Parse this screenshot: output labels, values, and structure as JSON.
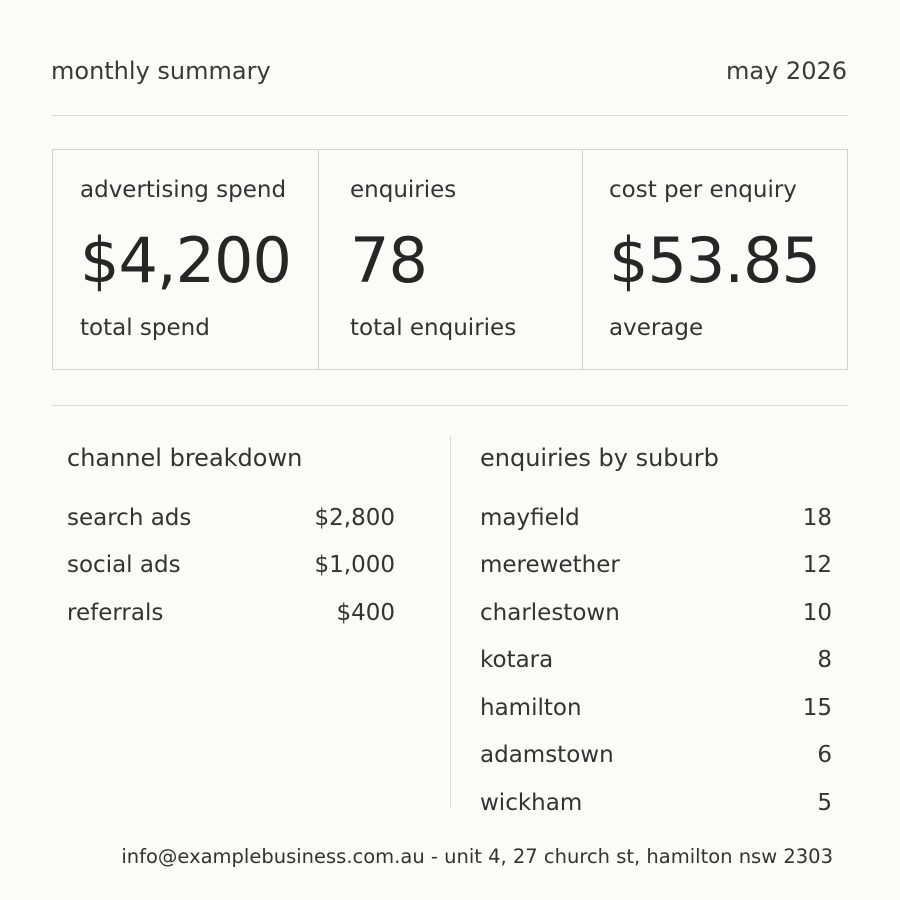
{
  "header": {
    "title": "monthly summary",
    "period": "may 2026"
  },
  "cards": [
    {
      "label": "advertising spend",
      "value": "$4,200",
      "sub": "total spend"
    },
    {
      "label": "enquiries",
      "value": "78",
      "sub": "total enquiries"
    },
    {
      "label": "cost per enquiry",
      "value": "$53.85",
      "sub": "average"
    }
  ],
  "channels": {
    "title": "channel breakdown",
    "rows": [
      {
        "name": "search ads",
        "value": "$2,800"
      },
      {
        "name": "social ads",
        "value": "$1,000"
      },
      {
        "name": "referrals",
        "value": "$400"
      }
    ]
  },
  "suburbs": {
    "title": "enquiries by suburb",
    "rows": [
      {
        "name": "mayfield",
        "value": "18"
      },
      {
        "name": "merewether",
        "value": "12"
      },
      {
        "name": "charlestown",
        "value": "10"
      },
      {
        "name": "kotara",
        "value": "8"
      },
      {
        "name": "hamilton",
        "value": "15"
      },
      {
        "name": "adamstown",
        "value": "6"
      },
      {
        "name": "wickham",
        "value": "5"
      }
    ]
  },
  "footer": {
    "contact": "info@examplebusiness.com.au - unit 4, 27 church st, hamilton nsw 2303"
  }
}
